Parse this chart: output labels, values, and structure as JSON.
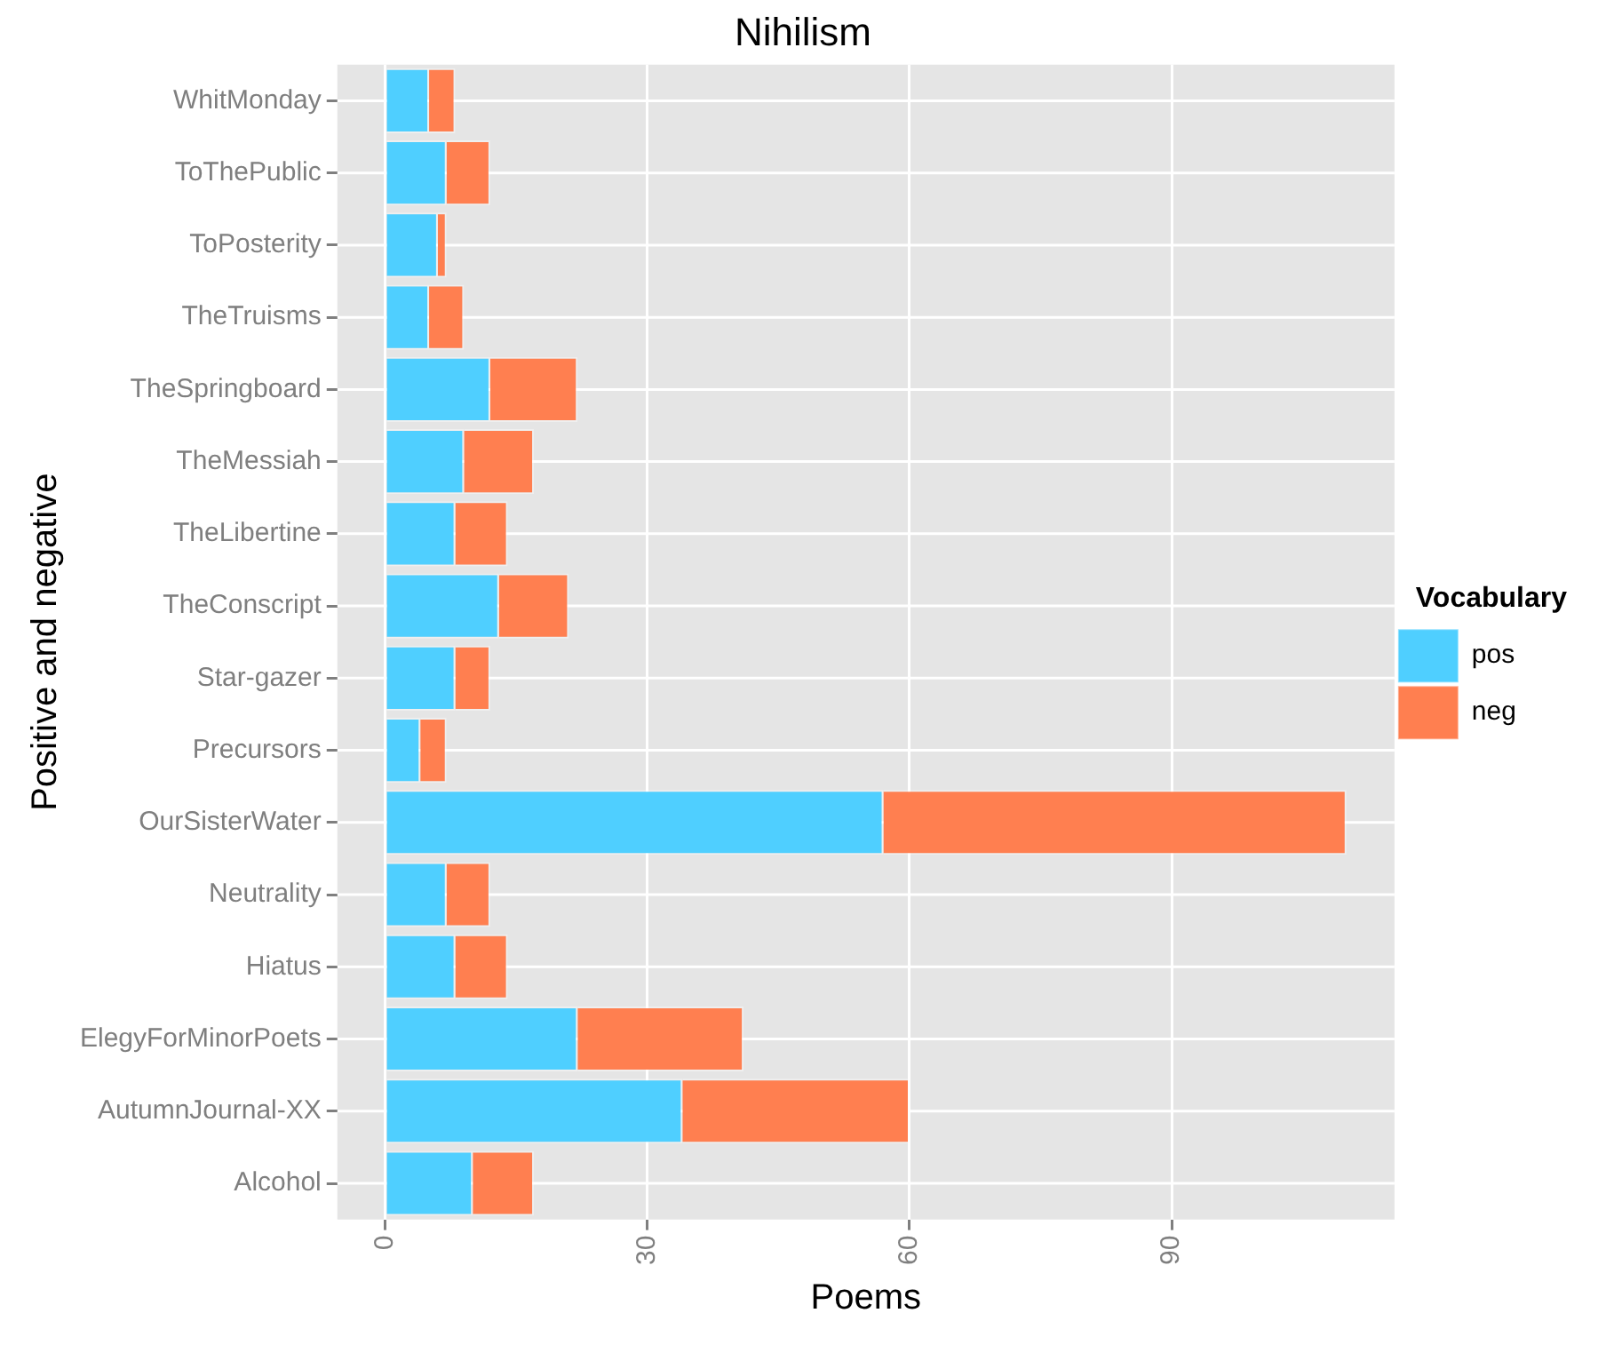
{
  "chart_data": {
    "type": "bar",
    "orientation": "horizontal",
    "stacked": true,
    "title": "Nihilism",
    "xlabel": "Poems",
    "ylabel": "Positive and negative",
    "legend_title": "Vocabulary",
    "legend": "right",
    "grid": true,
    "categories": [
      "WhitMonday",
      "ToThePublic",
      "ToPosterity",
      "TheTruisms",
      "TheSpringboard",
      "TheMessiah",
      "TheLibertine",
      "TheConscript",
      "Star-gazer",
      "Precursors",
      "OurSisterWater",
      "Neutrality",
      "Hiatus",
      "ElegyForMinorPoets",
      "AutumnJournal-XX",
      "Alcohol"
    ],
    "series": [
      {
        "name": "pos",
        "color": "#4fcfff",
        "values": [
          5,
          7,
          6,
          5,
          12,
          9,
          8,
          13,
          8,
          4,
          57,
          7,
          8,
          22,
          34,
          10
        ]
      },
      {
        "name": "neg",
        "color": "#ff7f50",
        "values": [
          3,
          5,
          1,
          4,
          10,
          8,
          6,
          8,
          4,
          3,
          53,
          5,
          6,
          19,
          26,
          7
        ]
      }
    ],
    "xlim": [
      -5.5,
      115.5
    ],
    "xticks": [
      0,
      30,
      60,
      90
    ]
  }
}
